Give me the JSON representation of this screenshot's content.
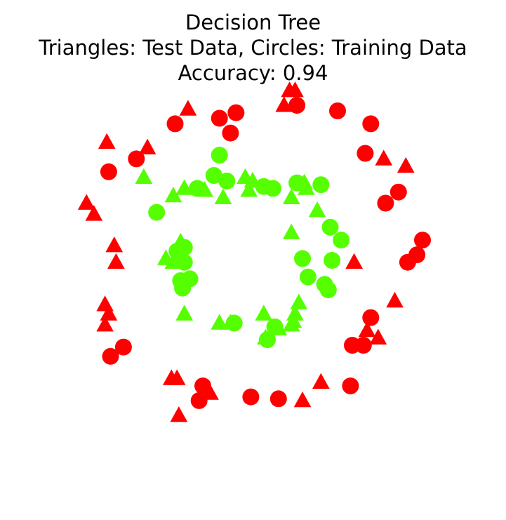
{
  "chart_data": {
    "type": "scatter",
    "title": "Decision Tree",
    "subtitle": "Triangles: Test Data, Circles: Training Data",
    "metric": "Accuracy: 0.94",
    "axes_visible": false,
    "grid": false,
    "xlim": [
      -1.2,
      1.2
    ],
    "ylim": [
      -1.2,
      1.2
    ],
    "colors": {
      "outer": "#ff0000",
      "inner": "#55ff00"
    },
    "series": [
      {
        "marker": "circle",
        "split": "train",
        "class": "outer",
        "color": "#ff0000",
        "points": [
          [
            0.24,
            1.03
          ],
          [
            0.46,
            1.0
          ],
          [
            -0.09,
            0.99
          ],
          [
            -0.18,
            0.96
          ],
          [
            -0.42,
            0.93
          ],
          [
            -0.12,
            0.88
          ],
          [
            0.64,
            0.93
          ],
          [
            0.61,
            0.77
          ],
          [
            -0.63,
            0.74
          ],
          [
            -0.78,
            0.67
          ],
          [
            0.79,
            0.56
          ],
          [
            0.72,
            0.5
          ],
          [
            0.92,
            0.3
          ],
          [
            0.89,
            0.22
          ],
          [
            0.84,
            0.18
          ],
          [
            0.64,
            -0.12
          ],
          [
            0.54,
            -0.27
          ],
          [
            0.6,
            -0.27
          ],
          [
            0.53,
            -0.49
          ],
          [
            -0.7,
            -0.28
          ],
          [
            -0.77,
            -0.33
          ],
          [
            -0.27,
            -0.49
          ],
          [
            -0.29,
            -0.57
          ],
          [
            -0.01,
            -0.55
          ],
          [
            0.14,
            -0.56
          ]
        ]
      },
      {
        "marker": "triangle",
        "split": "test",
        "class": "outer",
        "color": "#ff0000",
        "points": [
          [
            0.2,
            1.11
          ],
          [
            0.23,
            1.11
          ],
          [
            0.17,
            1.03
          ],
          [
            -0.35,
            1.01
          ],
          [
            -0.79,
            0.83
          ],
          [
            -0.57,
            0.8
          ],
          [
            0.71,
            0.74
          ],
          [
            0.83,
            0.7
          ],
          [
            -0.9,
            0.5
          ],
          [
            -0.86,
            0.44
          ],
          [
            -0.75,
            0.27
          ],
          [
            -0.74,
            0.18
          ],
          [
            0.55,
            0.18
          ],
          [
            -0.8,
            -0.05
          ],
          [
            -0.78,
            -0.1
          ],
          [
            0.77,
            -0.03
          ],
          [
            -0.8,
            -0.16
          ],
          [
            0.62,
            -0.19
          ],
          [
            0.68,
            -0.23
          ],
          [
            -0.44,
            -0.45
          ],
          [
            -0.41,
            -0.45
          ],
          [
            0.37,
            -0.47
          ],
          [
            -0.23,
            -0.53
          ],
          [
            -0.4,
            -0.65
          ],
          [
            0.27,
            -0.57
          ]
        ]
      },
      {
        "marker": "circle",
        "split": "train",
        "class": "inner",
        "color": "#55ff00",
        "points": [
          [
            -0.18,
            0.76
          ],
          [
            -0.21,
            0.65
          ],
          [
            -0.14,
            0.62
          ],
          [
            -0.3,
            0.58
          ],
          [
            0.24,
            0.61
          ],
          [
            0.37,
            0.6
          ],
          [
            0.06,
            0.59
          ],
          [
            0.11,
            0.58
          ],
          [
            -0.52,
            0.45
          ],
          [
            0.42,
            0.37
          ],
          [
            0.48,
            0.3
          ],
          [
            -0.37,
            0.26
          ],
          [
            0.27,
            0.2
          ],
          [
            0.43,
            0.19
          ],
          [
            -0.37,
            0.18
          ],
          [
            -0.41,
            0.24
          ],
          [
            -0.34,
            0.09
          ],
          [
            0.3,
            0.1
          ],
          [
            -0.39,
            0.08
          ],
          [
            0.39,
            0.06
          ],
          [
            -0.38,
            0.04
          ],
          [
            0.41,
            0.03
          ],
          [
            -0.1,
            -0.15
          ],
          [
            0.12,
            -0.17
          ],
          [
            0.08,
            -0.24
          ]
        ]
      },
      {
        "marker": "triangle",
        "split": "test",
        "class": "inner",
        "color": "#55ff00",
        "points": [
          [
            -0.59,
            0.64
          ],
          [
            -0.04,
            0.64
          ],
          [
            0.0,
            0.62
          ],
          [
            0.28,
            0.61
          ],
          [
            0.29,
            0.58
          ],
          [
            -0.37,
            0.58
          ],
          [
            -0.02,
            0.57
          ],
          [
            -0.26,
            0.57
          ],
          [
            -0.43,
            0.54
          ],
          [
            -0.16,
            0.53
          ],
          [
            0.21,
            0.53
          ],
          [
            0.35,
            0.46
          ],
          [
            0.21,
            0.34
          ],
          [
            -0.39,
            0.29
          ],
          [
            -0.47,
            0.2
          ],
          [
            -0.43,
            0.18
          ],
          [
            0.25,
            -0.04
          ],
          [
            -0.37,
            -0.1
          ],
          [
            0.06,
            -0.1
          ],
          [
            0.23,
            -0.1
          ],
          [
            0.22,
            -0.14
          ],
          [
            -0.18,
            -0.15
          ],
          [
            -0.12,
            -0.15
          ],
          [
            0.21,
            -0.16
          ],
          [
            0.14,
            -0.18
          ],
          [
            0.07,
            -0.23
          ]
        ]
      }
    ]
  }
}
